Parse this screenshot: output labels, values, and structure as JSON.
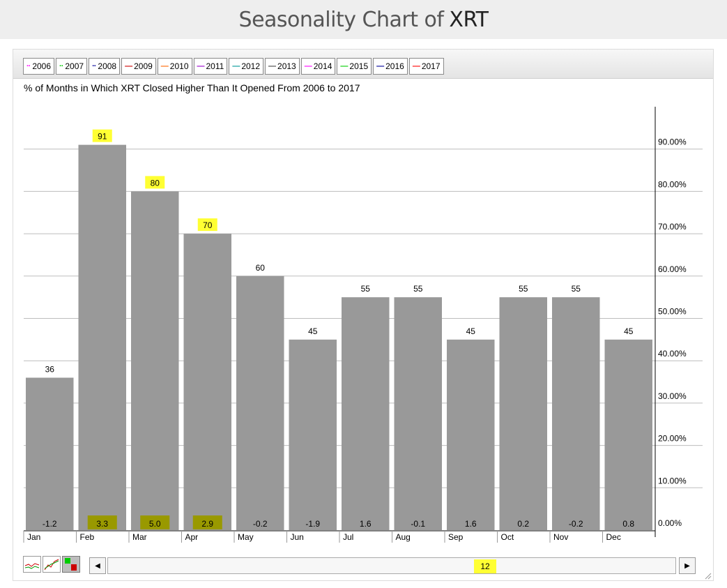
{
  "page": {
    "title_prefix": "Seasonality Chart of",
    "title_ticker": "XRT"
  },
  "legend": [
    {
      "label": "2006",
      "color": "#ff00ff",
      "dotted": true
    },
    {
      "label": "2007",
      "color": "#00cc00",
      "dotted": true
    },
    {
      "label": "2008",
      "color": "#000099",
      "dotted": true
    },
    {
      "label": "2009",
      "color": "#cc0000",
      "dotted": false
    },
    {
      "label": "2010",
      "color": "#ff6600",
      "dotted": false
    },
    {
      "label": "2011",
      "color": "#9900cc",
      "dotted": false
    },
    {
      "label": "2012",
      "color": "#009999",
      "dotted": false
    },
    {
      "label": "2013",
      "color": "#444444",
      "dotted": false
    },
    {
      "label": "2014",
      "color": "#ff00ff",
      "dotted": false
    },
    {
      "label": "2015",
      "color": "#00cc00",
      "dotted": false
    },
    {
      "label": "2016",
      "color": "#000099",
      "dotted": false
    },
    {
      "label": "2017",
      "color": "#ff0000",
      "dotted": false
    }
  ],
  "chart_data": {
    "type": "bar",
    "title": "% of Months in Which XRT Closed Higher Than It Opened From 2006 to 2017",
    "categories": [
      "Jan",
      "Feb",
      "Mar",
      "Apr",
      "May",
      "Jun",
      "Jul",
      "Aug",
      "Sep",
      "Oct",
      "Nov",
      "Dec"
    ],
    "series": [
      {
        "values": [
          36,
          91,
          80,
          70,
          60,
          45,
          55,
          55,
          45,
          55,
          55,
          45
        ]
      }
    ],
    "bottom_labels": [
      "-1.2",
      "3.3",
      "5.0",
      "2.9",
      "-0.2",
      "-1.9",
      "1.6",
      "-0.1",
      "1.6",
      "0.2",
      "-0.2",
      "0.8"
    ],
    "highlighted_categories": [
      "Feb",
      "Mar",
      "Apr"
    ],
    "yticks": [
      "0.00%",
      "10.00%",
      "20.00%",
      "30.00%",
      "40.00%",
      "50.00%",
      "60.00%",
      "70.00%",
      "80.00%",
      "90.00%"
    ],
    "ylim": [
      0,
      100
    ],
    "axis_position": "right",
    "grid": true,
    "bar_color": "#999999",
    "highlight_color": "#ffff33",
    "highlight_bottom_color": "#999900"
  },
  "navigator": {
    "count": "12"
  }
}
